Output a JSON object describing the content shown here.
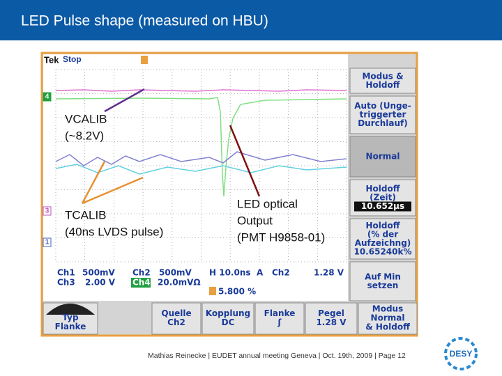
{
  "header": {
    "title": "LED Pulse shape (measured on HBU)"
  },
  "scope": {
    "top": {
      "brand": "Tek",
      "status": "Stop"
    },
    "markers": [
      "4",
      "3",
      "1"
    ],
    "menu": [
      {
        "lines": [
          "Modus &",
          "Holdoff"
        ]
      },
      {
        "lines": [
          "Auto (Unge-",
          "triggerter",
          "Durchlauf)"
        ]
      },
      {
        "lines": [
          "Normal"
        ]
      },
      {
        "lines": [
          "Holdoff",
          "(Zeit)"
        ],
        "value": "10.652µs"
      },
      {
        "lines": [
          "Holdoff",
          "(% der",
          "Aufzeichng)"
        ],
        "value": "10.65240k%"
      },
      {
        "lines": [
          "Auf Min",
          "setzen"
        ]
      }
    ],
    "readout": {
      "ch1": "Ch1",
      "ch1_scale": "500mV",
      "ch2": "Ch2",
      "ch2_scale": "500mV",
      "horizontal": "H 10.0ns",
      "trigger_mode": "A",
      "trigger_source": "Ch2",
      "trigger_level": "1.28 V",
      "ch3": "Ch3",
      "ch3_scale": "2.00 V",
      "ch4": "Ch4",
      "ch4_scale": "20.0mVΩ",
      "position": "5.800 %"
    },
    "buttons": [
      {
        "lines": [
          "Typ",
          "Flanke"
        ]
      },
      {
        "lines": [
          "Quelle",
          "Ch2"
        ]
      },
      {
        "lines": [
          "Kopplung",
          "DC"
        ]
      },
      {
        "lines": [
          "Flanke",
          "ʃ"
        ]
      },
      {
        "lines": [
          "Pegel",
          "1.28 V"
        ]
      },
      {
        "lines": [
          "Modus",
          "Normal",
          "& Holdoff"
        ]
      }
    ]
  },
  "annotations": [
    {
      "lines": [
        "VCALIB",
        "(~8.2V)"
      ]
    },
    {
      "lines": [
        "TCALIB",
        "(40ns LVDS pulse)"
      ]
    },
    {
      "lines": [
        "LED optical",
        "Output",
        "(PMT H9858-01)"
      ]
    }
  ],
  "footer": {
    "text": "Mathias Reinecke | EUDET annual meeting Geneva | Oct. 19th, 2009 | Page 12",
    "logo": "DESY"
  }
}
